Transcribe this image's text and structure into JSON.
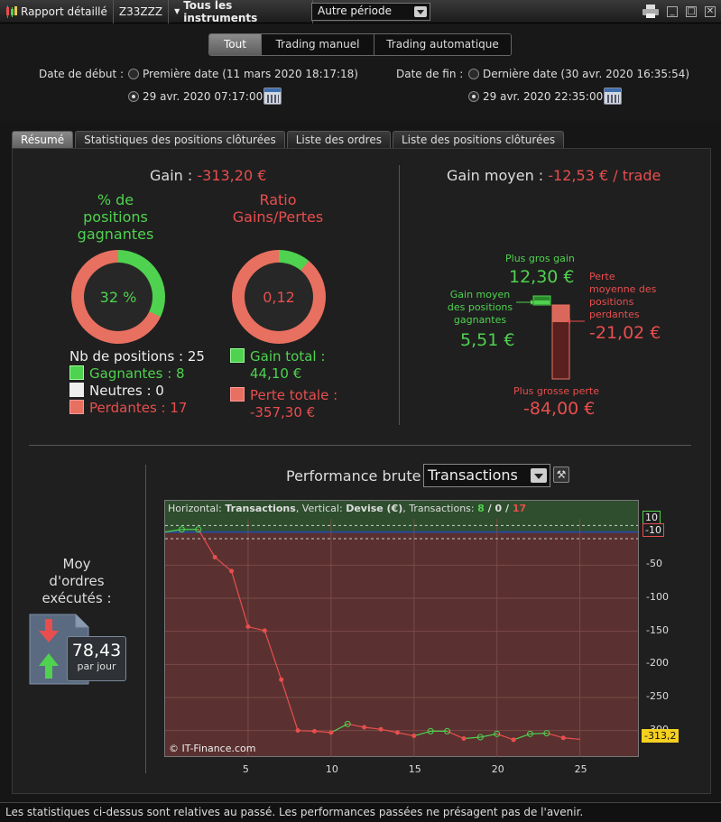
{
  "titlebar": {
    "report_label": "Rapport détaillé",
    "account": "Z33ZZZ",
    "instruments_label": "Tous les instruments",
    "period_value": "Autre période"
  },
  "filter": {
    "segments": [
      "Tout",
      "Trading manuel",
      "Trading automatique"
    ],
    "active_segment": "Tout",
    "start_label": "Date de début :",
    "start_option_first": "Première date (11 mars 2020 18:17:18)",
    "start_option_custom": "29 avr. 2020 07:17:00",
    "end_label": "Date de fin :",
    "end_option_last": "Dernière date (30 avr. 2020 16:35:54)",
    "end_option_custom": "29 avr. 2020 22:35:00"
  },
  "tabs": [
    "Résumé",
    "Statistiques des positions clôturées",
    "Liste des ordres",
    "Liste des positions clôturées"
  ],
  "summary": {
    "gain_label": "Gain :",
    "gain_value": "-313,20 €",
    "pct_title_1": "% de",
    "pct_title_2": "positions",
    "pct_title_3": "gagnantes",
    "pct_value": "32 %",
    "pct_fraction": 0.32,
    "ratio_title_1": "Ratio",
    "ratio_title_2": "Gains/Pertes",
    "ratio_value": "0,12",
    "ratio_fraction": 0.11,
    "positions_label": "Nb de positions : 25",
    "winning": "Gagnantes : 8",
    "neutral": "Neutres : 0",
    "losing": "Perdantes : 17",
    "total_gain_label": "Gain total :",
    "total_gain_value": "44,10 €",
    "total_loss_label": "Perte totale :",
    "total_loss_value": "-357,30 €",
    "avg_gain_label": "Gain moyen :",
    "avg_gain_value": "-12,53 € / trade",
    "biggest_gain_label": "Plus gros gain",
    "biggest_gain_value": "12,30 €",
    "avg_winning_label_1": "Gain moyen",
    "avg_winning_label_2": "des positions",
    "avg_winning_label_3": "gagnantes",
    "avg_winning_value": "5,51 €",
    "avg_losing_label_1": "Perte",
    "avg_losing_label_2": "moyenne des",
    "avg_losing_label_3": "positions",
    "avg_losing_label_4": "perdantes",
    "avg_losing_value": "-21,02 €",
    "biggest_loss_label": "Plus grosse perte",
    "biggest_loss_value": "-84,00 €"
  },
  "orders": {
    "label_1": "Moy",
    "label_2": "d'ordres",
    "label_3": "exécutés :",
    "value": "78,43",
    "unit": "par jour"
  },
  "performance": {
    "title": "Performance brute",
    "select_value": "Transactions",
    "header_prefix": "Horizontal:",
    "header_h": "Transactions",
    "header_mid": ", Vertical:",
    "header_v": "Devise (€)",
    "header_tx": ", Transactions:",
    "tx_win": "8",
    "tx_sep1": " / ",
    "tx_neutral": "0",
    "tx_sep2": " / ",
    "tx_loss": "17",
    "watermark": "© IT-Finance.com",
    "last_value_label": "-313,2",
    "ref_high_label": "10",
    "ref_low_label": "-10"
  },
  "chart_data": {
    "type": "line",
    "xlabel": "",
    "ylabel": "",
    "xlim": [
      0,
      28.5
    ],
    "ylim": [
      -340,
      20
    ],
    "x_ticks": [
      5,
      10,
      15,
      20,
      25
    ],
    "y_ticks": [
      -50,
      -100,
      -150,
      -200,
      -250,
      -300
    ],
    "reference_lines": [
      10,
      -10
    ],
    "x": [
      0,
      1,
      2,
      3,
      4,
      5,
      6,
      7,
      8,
      9,
      10,
      11,
      12,
      13,
      14,
      15,
      16,
      17,
      18,
      19,
      20,
      21,
      22,
      23,
      24,
      25
    ],
    "y": [
      0,
      4,
      4,
      -38,
      -59,
      -143,
      -149,
      -223,
      -300,
      -301,
      -303,
      -290,
      -295,
      -298,
      -303,
      -308,
      -301,
      -301,
      -312,
      -310,
      -305,
      -314,
      -305,
      -304,
      -311,
      -313.2
    ],
    "colors": {
      "gain": "#4fd24f",
      "loss": "#e84e4e",
      "plot_bg": "#5a3130"
    }
  },
  "footer": {
    "disclaimer": "Les statistiques ci-dessus sont relatives au passé. Les performances passées ne présagent pas de l'avenir."
  },
  "colors": {
    "gain": "#4fd24f",
    "loss": "#e84e4e",
    "neutral": "#e8e8e8"
  }
}
